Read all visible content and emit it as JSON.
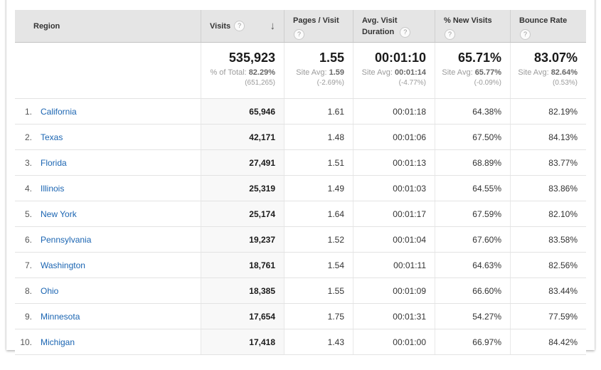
{
  "colors": {
    "link_color": "#1b65b2",
    "header_bg": "#e5e5e5",
    "sorted_column_bg": "#f8f8f8"
  },
  "icons": {
    "help_glyph": "?",
    "sort_desc_glyph": "↓"
  },
  "table": {
    "columns": [
      {
        "label": "Region"
      },
      {
        "label": "Visits",
        "sorted": "descending"
      },
      {
        "label": "Pages / Visit"
      },
      {
        "label": "Avg. Visit Duration"
      },
      {
        "label": "% New Visits"
      },
      {
        "label": "Bounce Rate"
      }
    ],
    "summary": {
      "visits": {
        "value": "535,923",
        "avg_label": "% of Total:",
        "avg_value": "82.29%",
        "delta": "(651,265)"
      },
      "pages_per_visit": {
        "value": "1.55",
        "avg_label": "Site Avg:",
        "avg_value": "1.59",
        "delta": "(-2.69%)"
      },
      "avg_visit_duration": {
        "value": "00:01:10",
        "avg_label": "Site Avg:",
        "avg_value": "00:01:14",
        "delta": "(-4.77%)"
      },
      "pct_new_visits": {
        "value": "65.71%",
        "avg_label": "Site Avg:",
        "avg_value": "65.77%",
        "delta": "(-0.09%)"
      },
      "bounce_rate": {
        "value": "83.07%",
        "avg_label": "Site Avg:",
        "avg_value": "82.64%",
        "delta": "(0.53%)"
      }
    },
    "rows": [
      {
        "rank": "1.",
        "region": "California",
        "visits": "65,946",
        "pages_per_visit": "1.61",
        "avg_visit_duration": "00:01:18",
        "pct_new_visits": "64.38%",
        "bounce_rate": "82.19%"
      },
      {
        "rank": "2.",
        "region": "Texas",
        "visits": "42,171",
        "pages_per_visit": "1.48",
        "avg_visit_duration": "00:01:06",
        "pct_new_visits": "67.50%",
        "bounce_rate": "84.13%"
      },
      {
        "rank": "3.",
        "region": "Florida",
        "visits": "27,491",
        "pages_per_visit": "1.51",
        "avg_visit_duration": "00:01:13",
        "pct_new_visits": "68.89%",
        "bounce_rate": "83.77%"
      },
      {
        "rank": "4.",
        "region": "Illinois",
        "visits": "25,319",
        "pages_per_visit": "1.49",
        "avg_visit_duration": "00:01:03",
        "pct_new_visits": "64.55%",
        "bounce_rate": "83.86%"
      },
      {
        "rank": "5.",
        "region": "New York",
        "visits": "25,174",
        "pages_per_visit": "1.64",
        "avg_visit_duration": "00:01:17",
        "pct_new_visits": "67.59%",
        "bounce_rate": "82.10%"
      },
      {
        "rank": "6.",
        "region": "Pennsylvania",
        "visits": "19,237",
        "pages_per_visit": "1.52",
        "avg_visit_duration": "00:01:04",
        "pct_new_visits": "67.60%",
        "bounce_rate": "83.58%"
      },
      {
        "rank": "7.",
        "region": "Washington",
        "visits": "18,761",
        "pages_per_visit": "1.54",
        "avg_visit_duration": "00:01:11",
        "pct_new_visits": "64.63%",
        "bounce_rate": "82.56%"
      },
      {
        "rank": "8.",
        "region": "Ohio",
        "visits": "18,385",
        "pages_per_visit": "1.55",
        "avg_visit_duration": "00:01:09",
        "pct_new_visits": "66.60%",
        "bounce_rate": "83.44%"
      },
      {
        "rank": "9.",
        "region": "Minnesota",
        "visits": "17,654",
        "pages_per_visit": "1.75",
        "avg_visit_duration": "00:01:31",
        "pct_new_visits": "54.27%",
        "bounce_rate": "77.59%"
      },
      {
        "rank": "10.",
        "region": "Michigan",
        "visits": "17,418",
        "pages_per_visit": "1.43",
        "avg_visit_duration": "00:01:00",
        "pct_new_visits": "66.97%",
        "bounce_rate": "84.42%"
      }
    ]
  }
}
